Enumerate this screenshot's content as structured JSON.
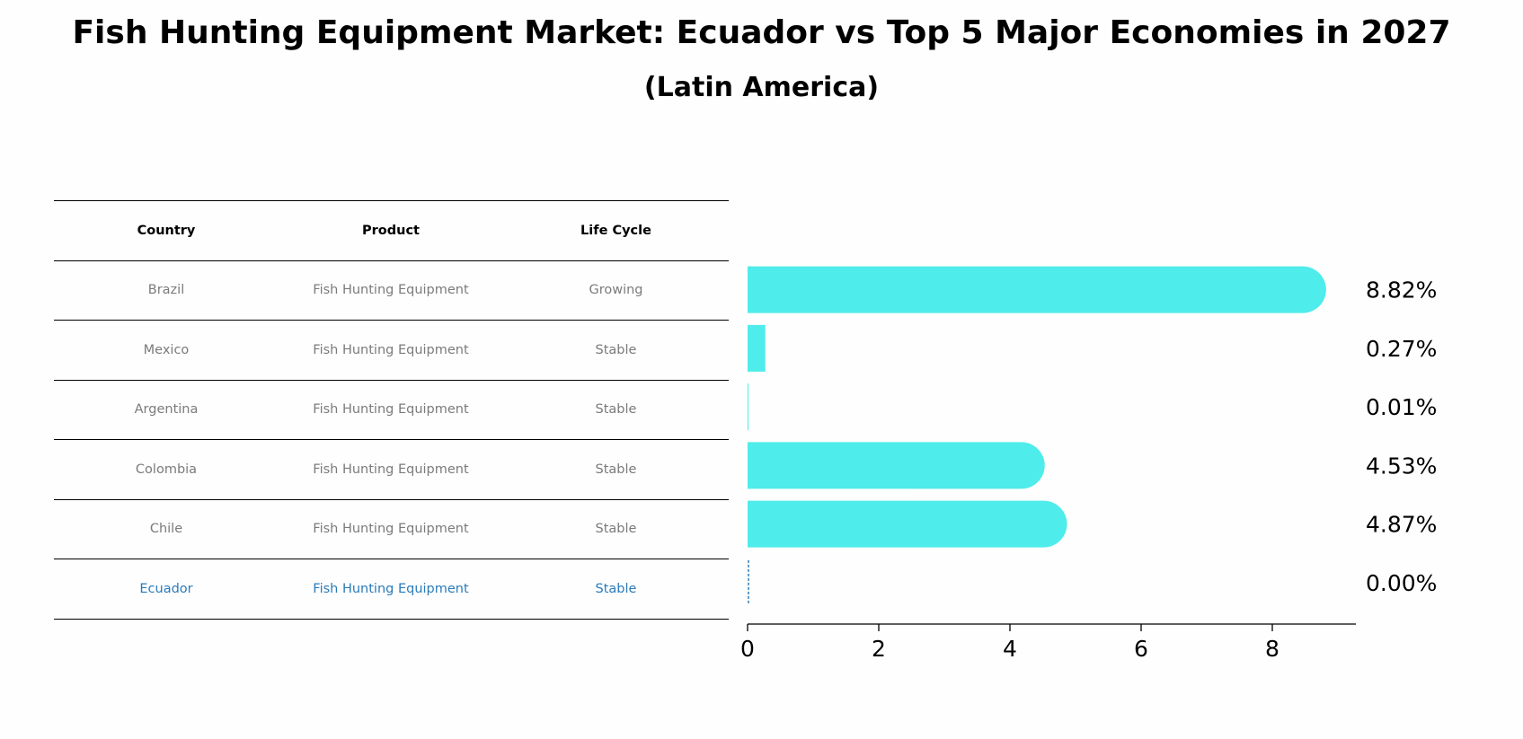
{
  "title": "Fish Hunting Equipment Market: Ecuador vs Top 5 Major Economies in 2027",
  "subtitle": "(Latin America)",
  "table": {
    "headers": [
      "Country",
      "Product",
      "Life Cycle"
    ],
    "rows": [
      [
        "Brazil",
        "Fish Hunting Equipment",
        "Growing"
      ],
      [
        "Mexico",
        "Fish Hunting Equipment",
        "Stable"
      ],
      [
        "Argentina",
        "Fish Hunting Equipment",
        "Stable"
      ],
      [
        "Colombia",
        "Fish Hunting Equipment",
        "Stable"
      ],
      [
        "Chile",
        "Fish Hunting Equipment",
        "Stable"
      ],
      [
        "Ecuador",
        "Fish Hunting Equipment",
        "Stable"
      ]
    ],
    "highlight_row": "Ecuador"
  },
  "chart_data": {
    "type": "bar",
    "orientation": "horizontal",
    "categories": [
      "Brazil",
      "Mexico",
      "Argentina",
      "Colombia",
      "Chile",
      "Ecuador"
    ],
    "values": [
      8.82,
      0.27,
      0.01,
      4.53,
      4.87,
      0.0
    ],
    "data_labels": [
      "8.82%",
      "0.27%",
      "0.01%",
      "4.53%",
      "4.87%",
      "0.00%"
    ],
    "xlim": [
      0,
      9.25
    ],
    "xticks": [
      0,
      2,
      4,
      6,
      8
    ],
    "xtick_labels": [
      "0",
      "2",
      "4",
      "6",
      "8"
    ],
    "xlabel": "",
    "ylabel": "",
    "grid": false,
    "bar_color": "#4eecea",
    "highlight_color": "#2b7bba"
  }
}
